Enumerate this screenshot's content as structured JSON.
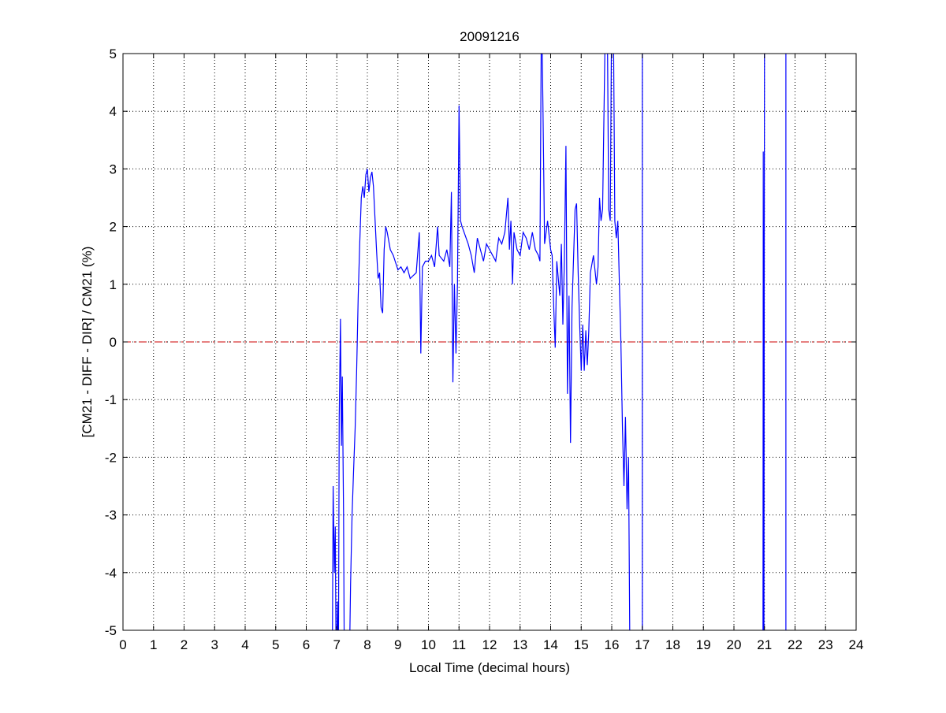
{
  "chart_data": {
    "type": "line",
    "title": "20091216",
    "xlabel": "Local Time (decimal hours)",
    "ylabel": "[CM21 - DIFF - DIR] / CM21 (%)",
    "xlim": [
      0,
      24
    ],
    "ylim": [
      -5,
      5
    ],
    "xticks": [
      0,
      1,
      2,
      3,
      4,
      5,
      6,
      7,
      8,
      9,
      10,
      11,
      12,
      13,
      14,
      15,
      16,
      17,
      18,
      19,
      20,
      21,
      22,
      23,
      24
    ],
    "yticks": [
      -5,
      -4,
      -3,
      -2,
      -1,
      0,
      1,
      2,
      3,
      4,
      5
    ],
    "grid": true,
    "colors": {
      "series": "#0000ff",
      "reference": "#cc0000"
    },
    "reference_line": {
      "y": 0,
      "style": "dash-dot"
    },
    "series": [
      {
        "points": [
          [
            6.85,
            -6
          ],
          [
            6.88,
            -2.5
          ],
          [
            6.92,
            -4
          ],
          [
            6.95,
            -3.2
          ],
          [
            6.98,
            -6
          ],
          [
            7.02,
            -4.5
          ],
          [
            7.05,
            -6
          ],
          [
            7.08,
            -1.3
          ],
          [
            7.12,
            0.4
          ],
          [
            7.15,
            -1.8
          ],
          [
            7.18,
            -0.6
          ],
          [
            7.22,
            -3
          ],
          [
            7.25,
            -6
          ],
          [
            7.4,
            -6
          ],
          [
            7.45,
            -4.2
          ],
          [
            7.5,
            -3
          ],
          [
            7.55,
            -2.2
          ],
          [
            7.6,
            -1.5
          ],
          [
            7.65,
            -0.5
          ],
          [
            7.7,
            0.8
          ],
          [
            7.75,
            1.7
          ],
          [
            7.8,
            2.5
          ],
          [
            7.85,
            2.7
          ],
          [
            7.9,
            2.5
          ],
          [
            7.95,
            2.9
          ],
          [
            8.0,
            3.0
          ],
          [
            8.05,
            2.6
          ],
          [
            8.1,
            2.85
          ],
          [
            8.15,
            2.95
          ],
          [
            8.2,
            2.7
          ],
          [
            8.3,
            1.6
          ],
          [
            8.35,
            1.1
          ],
          [
            8.4,
            1.2
          ],
          [
            8.45,
            0.6
          ],
          [
            8.5,
            0.5
          ],
          [
            8.55,
            1.6
          ],
          [
            8.6,
            2.0
          ],
          [
            8.65,
            1.9
          ],
          [
            8.75,
            1.6
          ],
          [
            8.85,
            1.5
          ],
          [
            9.0,
            1.25
          ],
          [
            9.1,
            1.3
          ],
          [
            9.2,
            1.2
          ],
          [
            9.3,
            1.3
          ],
          [
            9.4,
            1.1
          ],
          [
            9.5,
            1.15
          ],
          [
            9.6,
            1.2
          ],
          [
            9.7,
            1.9
          ],
          [
            9.75,
            -0.2
          ],
          [
            9.8,
            1.3
          ],
          [
            9.9,
            1.4
          ],
          [
            10.0,
            1.4
          ],
          [
            10.1,
            1.5
          ],
          [
            10.2,
            1.3
          ],
          [
            10.3,
            2.0
          ],
          [
            10.35,
            1.5
          ],
          [
            10.5,
            1.4
          ],
          [
            10.6,
            1.6
          ],
          [
            10.7,
            1.3
          ],
          [
            10.75,
            2.6
          ],
          [
            10.8,
            -0.7
          ],
          [
            10.85,
            1.0
          ],
          [
            10.9,
            -0.2
          ],
          [
            10.95,
            1.0
          ],
          [
            11.0,
            4.1
          ],
          [
            11.05,
            2.1
          ],
          [
            11.1,
            2.0
          ],
          [
            11.3,
            1.7
          ],
          [
            11.4,
            1.5
          ],
          [
            11.5,
            1.2
          ],
          [
            11.6,
            1.8
          ],
          [
            11.7,
            1.6
          ],
          [
            11.8,
            1.4
          ],
          [
            11.9,
            1.7
          ],
          [
            12.0,
            1.6
          ],
          [
            12.1,
            1.5
          ],
          [
            12.2,
            1.4
          ],
          [
            12.3,
            1.8
          ],
          [
            12.4,
            1.7
          ],
          [
            12.5,
            1.9
          ],
          [
            12.6,
            2.5
          ],
          [
            12.65,
            1.6
          ],
          [
            12.7,
            2.1
          ],
          [
            12.75,
            1.0
          ],
          [
            12.8,
            1.9
          ],
          [
            12.9,
            1.6
          ],
          [
            13.0,
            1.5
          ],
          [
            13.1,
            1.9
          ],
          [
            13.2,
            1.8
          ],
          [
            13.3,
            1.6
          ],
          [
            13.4,
            1.9
          ],
          [
            13.5,
            1.6
          ],
          [
            13.6,
            1.5
          ],
          [
            13.65,
            1.4
          ],
          [
            13.7,
            6
          ],
          [
            13.75,
            4.0
          ],
          [
            13.8,
            1.7
          ],
          [
            13.9,
            2.1
          ],
          [
            14.0,
            1.6
          ],
          [
            14.05,
            1.5
          ],
          [
            14.1,
            0.6
          ],
          [
            14.15,
            -0.1
          ],
          [
            14.2,
            1.4
          ],
          [
            14.3,
            0.8
          ],
          [
            14.35,
            1.7
          ],
          [
            14.4,
            0.3
          ],
          [
            14.45,
            1.4
          ],
          [
            14.5,
            3.4
          ],
          [
            14.55,
            -0.9
          ],
          [
            14.6,
            0.8
          ],
          [
            14.65,
            -1.75
          ],
          [
            14.7,
            0.6
          ],
          [
            14.8,
            2.3
          ],
          [
            14.85,
            2.4
          ],
          [
            14.9,
            1.2
          ],
          [
            14.95,
            0.3
          ],
          [
            15.0,
            -0.5
          ],
          [
            15.05,
            0.3
          ],
          [
            15.1,
            -0.5
          ],
          [
            15.15,
            0.2
          ],
          [
            15.2,
            -0.4
          ],
          [
            15.25,
            0.2
          ],
          [
            15.3,
            1.2
          ],
          [
            15.4,
            1.5
          ],
          [
            15.5,
            1.0
          ],
          [
            15.55,
            1.3
          ],
          [
            15.6,
            2.5
          ],
          [
            15.65,
            2.1
          ],
          [
            15.7,
            2.3
          ],
          [
            15.8,
            6
          ],
          [
            15.85,
            6
          ],
          [
            15.9,
            2.3
          ],
          [
            15.95,
            2.1
          ],
          [
            16.0,
            6
          ],
          [
            16.05,
            6
          ],
          [
            16.1,
            2.1
          ],
          [
            16.15,
            1.8
          ],
          [
            16.2,
            2.1
          ],
          [
            16.25,
            1.0
          ],
          [
            16.3,
            0
          ],
          [
            16.35,
            -1.5
          ],
          [
            16.4,
            -2.5
          ],
          [
            16.45,
            -1.3
          ],
          [
            16.5,
            -2.9
          ],
          [
            16.55,
            -2.0
          ],
          [
            16.6,
            -6
          ],
          null,
          [
            17.0,
            -6
          ],
          [
            17.0,
            6
          ],
          null,
          [
            20.95,
            -6
          ],
          [
            20.96,
            3.3
          ],
          [
            20.98,
            -6
          ],
          [
            21.0,
            6
          ],
          null,
          [
            21.7,
            6
          ],
          [
            21.7,
            -6
          ]
        ]
      }
    ]
  }
}
